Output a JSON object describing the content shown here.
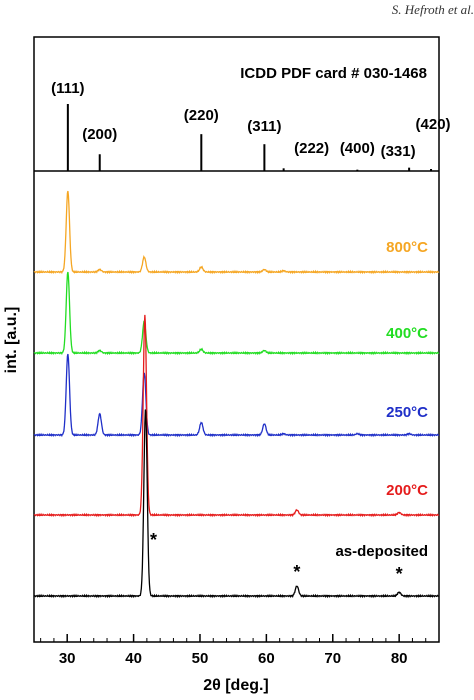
{
  "header_reference": "S. Hefroth et al.",
  "chart_data": {
    "type": "line",
    "xlabel": "2θ [deg.]",
    "ylabel": "int. [a.u.]",
    "xlim": [
      25,
      86
    ],
    "xticks": [
      30,
      40,
      50,
      60,
      70,
      80
    ],
    "reference_card": {
      "title": "ICDD PDF card # 030-1468",
      "peaks": [
        {
          "label": "(111)",
          "x": 30.1,
          "rel_intensity": 100
        },
        {
          "label": "(200)",
          "x": 34.9,
          "rel_intensity": 25
        },
        {
          "label": "(220)",
          "x": 50.2,
          "rel_intensity": 55
        },
        {
          "label": "(311)",
          "x": 59.7,
          "rel_intensity": 40
        },
        {
          "label": "(222)",
          "x": 62.6,
          "rel_intensity": 4
        },
        {
          "label": "(400)",
          "x": 73.7,
          "rel_intensity": 2
        },
        {
          "label": "(331)",
          "x": 81.5,
          "rel_intensity": 5
        },
        {
          "label": "(420)",
          "x": 84.8,
          "rel_intensity": 3
        }
      ]
    },
    "series": [
      {
        "name": "800°C",
        "color": "#f5a623",
        "peaks": [
          {
            "x": 30.1,
            "h": 0.65
          },
          {
            "x": 34.9,
            "h": 0.02
          },
          {
            "x": 41.6,
            "h": 0.12
          },
          {
            "x": 50.2,
            "h": 0.04
          },
          {
            "x": 59.7,
            "h": 0.02
          },
          {
            "x": 62.6,
            "h": 0.01
          }
        ]
      },
      {
        "name": "400°C",
        "color": "#22dd22",
        "peaks": [
          {
            "x": 30.1,
            "h": 0.65
          },
          {
            "x": 34.9,
            "h": 0.02
          },
          {
            "x": 41.6,
            "h": 0.25
          },
          {
            "x": 50.2,
            "h": 0.03
          },
          {
            "x": 59.7,
            "h": 0.02
          }
        ]
      },
      {
        "name": "250°C",
        "color": "#1f2fc8",
        "peaks": [
          {
            "x": 30.1,
            "h": 0.65
          },
          {
            "x": 34.9,
            "h": 0.17
          },
          {
            "x": 41.6,
            "h": 0.5
          },
          {
            "x": 50.2,
            "h": 0.1
          },
          {
            "x": 59.7,
            "h": 0.09
          },
          {
            "x": 62.6,
            "h": 0.01
          },
          {
            "x": 73.7,
            "h": 0.01
          },
          {
            "x": 81.5,
            "h": 0.01
          }
        ]
      },
      {
        "name": "200°C",
        "color": "#e51c1c",
        "peaks": [
          {
            "x": 41.7,
            "h": 1.6
          },
          {
            "x": 64.6,
            "h": 0.04
          },
          {
            "x": 80.0,
            "h": 0.02
          }
        ]
      },
      {
        "name": "as-deposited",
        "color": "#000000",
        "peaks": [
          {
            "x": 41.8,
            "h": 1.5
          },
          {
            "x": 64.6,
            "h": 0.08
          },
          {
            "x": 80.0,
            "h": 0.03
          }
        ]
      }
    ],
    "annotations": [
      {
        "text": "*",
        "x": 43.0
      },
      {
        "text": "*",
        "x": 64.6
      },
      {
        "text": "*",
        "x": 80.0
      }
    ]
  }
}
